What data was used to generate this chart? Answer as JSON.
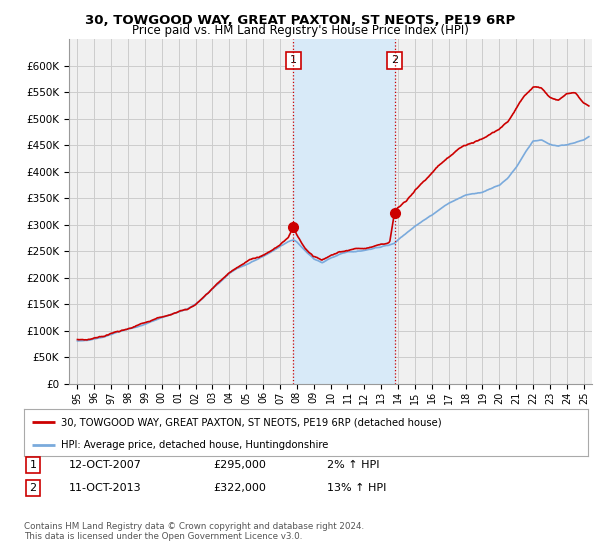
{
  "title": "30, TOWGOOD WAY, GREAT PAXTON, ST NEOTS, PE19 6RP",
  "subtitle": "Price paid vs. HM Land Registry's House Price Index (HPI)",
  "ylim": [
    0,
    650000
  ],
  "xlim_start": 1994.5,
  "xlim_end": 2025.5,
  "hpi_color": "#7aaadc",
  "price_color": "#cc0000",
  "sale1_date": 2007.79,
  "sale1_price": 295000,
  "sale1_label": "1",
  "sale2_date": 2013.79,
  "sale2_price": 322000,
  "sale2_label": "2",
  "highlight_color": "#d8eaf8",
  "vline_color": "#cc0000",
  "grid_color": "#cccccc",
  "legend_label1": "30, TOWGOOD WAY, GREAT PAXTON, ST NEOTS, PE19 6RP (detached house)",
  "legend_label2": "HPI: Average price, detached house, Huntingdonshire",
  "background_color": "#ffffff",
  "plot_bg_color": "#f0f0f0"
}
